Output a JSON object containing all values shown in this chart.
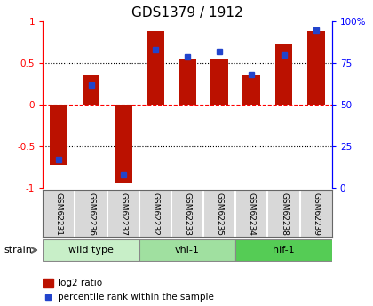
{
  "title": "GDS1379 / 1912",
  "samples": [
    "GSM62231",
    "GSM62236",
    "GSM62237",
    "GSM62232",
    "GSM62233",
    "GSM62235",
    "GSM62234",
    "GSM62238",
    "GSM62239"
  ],
  "log2_ratio": [
    -0.72,
    0.35,
    -0.93,
    0.88,
    0.54,
    0.56,
    0.35,
    0.72,
    0.88
  ],
  "percentile": [
    17,
    62,
    8,
    83,
    79,
    82,
    68,
    80,
    95
  ],
  "groups": [
    {
      "label": "wild type",
      "start": 0,
      "end": 3,
      "color": "#c8efc8"
    },
    {
      "label": "vhl-1",
      "start": 3,
      "end": 6,
      "color": "#a0e0a0"
    },
    {
      "label": "hif-1",
      "start": 6,
      "end": 9,
      "color": "#55cc55"
    }
  ],
  "ylim": [
    -1,
    1
  ],
  "y2lim": [
    0,
    100
  ],
  "yticks": [
    -1,
    -0.5,
    0,
    0.5,
    1
  ],
  "ytick_labels": [
    "-1",
    "-0.5",
    "0",
    "0.5",
    "1"
  ],
  "y2ticks": [
    0,
    25,
    50,
    75,
    100
  ],
  "y2ticklabels": [
    "0",
    "25",
    "50",
    "75",
    "100%"
  ],
  "bar_color": "#bb1100",
  "percentile_color": "#2244cc",
  "bar_width": 0.55,
  "title_fontsize": 11,
  "sample_bg_color": "#d8d8d8",
  "strain_label": "strain",
  "legend_log2": "log2 ratio",
  "legend_pct": "percentile rank within the sample"
}
